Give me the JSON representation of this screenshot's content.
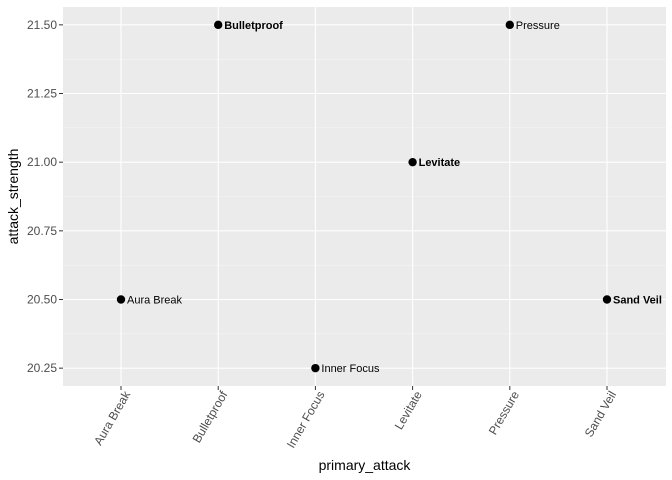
{
  "chart_data": {
    "type": "scatter",
    "title": "",
    "xlabel": "primary_attack",
    "ylabel": "attack_strength",
    "categories": [
      "Aura Break",
      "Bulletproof",
      "Inner Focus",
      "Levitate",
      "Pressure",
      "Sand Veil"
    ],
    "yticks": [
      20.25,
      20.5,
      20.75,
      21.0,
      21.25,
      21.5
    ],
    "ytick_labels": [
      "20.25",
      "20.50",
      "20.75",
      "21.00",
      "21.25",
      "21.50"
    ],
    "ylim": [
      20.185,
      21.565
    ],
    "grid": true,
    "points": [
      {
        "x": "Aura Break",
        "y": 20.5,
        "label": "Aura Break",
        "bold": false
      },
      {
        "x": "Bulletproof",
        "y": 21.5,
        "label": "Bulletproof",
        "bold": true
      },
      {
        "x": "Inner Focus",
        "y": 20.25,
        "label": "Inner Focus",
        "bold": false
      },
      {
        "x": "Levitate",
        "y": 21.0,
        "label": "Levitate",
        "bold": true
      },
      {
        "x": "Pressure",
        "y": 21.5,
        "label": "Pressure",
        "bold": false
      },
      {
        "x": "Sand Veil",
        "y": 20.5,
        "label": "Sand Veil",
        "bold": true
      }
    ],
    "colors": {
      "panel": "#ebebeb",
      "grid_major": "#ffffff",
      "grid_minor": "#f5f5f5",
      "point": "#000000",
      "tick_text": "#4d4d4d"
    }
  }
}
